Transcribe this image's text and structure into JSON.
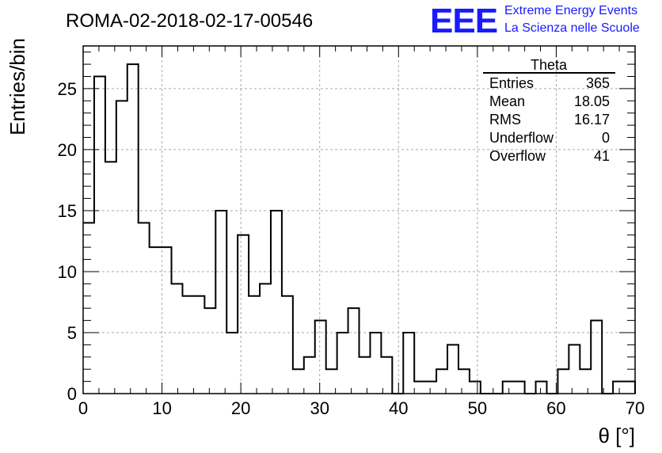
{
  "chart_data": {
    "type": "histogram",
    "title": "ROMA-02-2018-02-17-00546",
    "xlabel": "θ [°]",
    "ylabel": "Entries/bin",
    "xlim": [
      0,
      70
    ],
    "ylim": [
      0,
      28.5
    ],
    "x_ticks": [
      0,
      10,
      20,
      30,
      40,
      50,
      60,
      70
    ],
    "y_ticks": [
      0,
      5,
      10,
      15,
      20,
      25
    ],
    "grid": true,
    "bin_width": 1.4,
    "bin_edges_start": 0,
    "values": [
      14,
      26,
      19,
      24,
      27,
      14,
      12,
      12,
      9,
      8,
      8,
      7,
      15,
      5,
      13,
      8,
      9,
      15,
      8,
      2,
      3,
      6,
      2,
      5,
      7,
      3,
      5,
      3,
      0,
      5,
      1,
      1,
      2,
      4,
      2,
      1,
      0,
      0,
      1,
      1,
      0,
      1,
      0,
      2,
      4,
      2,
      6,
      0,
      1,
      1
    ]
  },
  "stats_box": {
    "name": "Theta",
    "rows": [
      {
        "label": "Entries",
        "value": "365"
      },
      {
        "label": "Mean",
        "value": "18.05"
      },
      {
        "label": "RMS",
        "value": "16.17"
      },
      {
        "label": "Underflow",
        "value": "0"
      },
      {
        "label": "Overflow",
        "value": "41"
      }
    ]
  },
  "logo": {
    "mark": "EEE",
    "line1": "Extreme Energy Events",
    "line2": "La Scienza nelle Scuole",
    "color": "#1a1aff"
  }
}
